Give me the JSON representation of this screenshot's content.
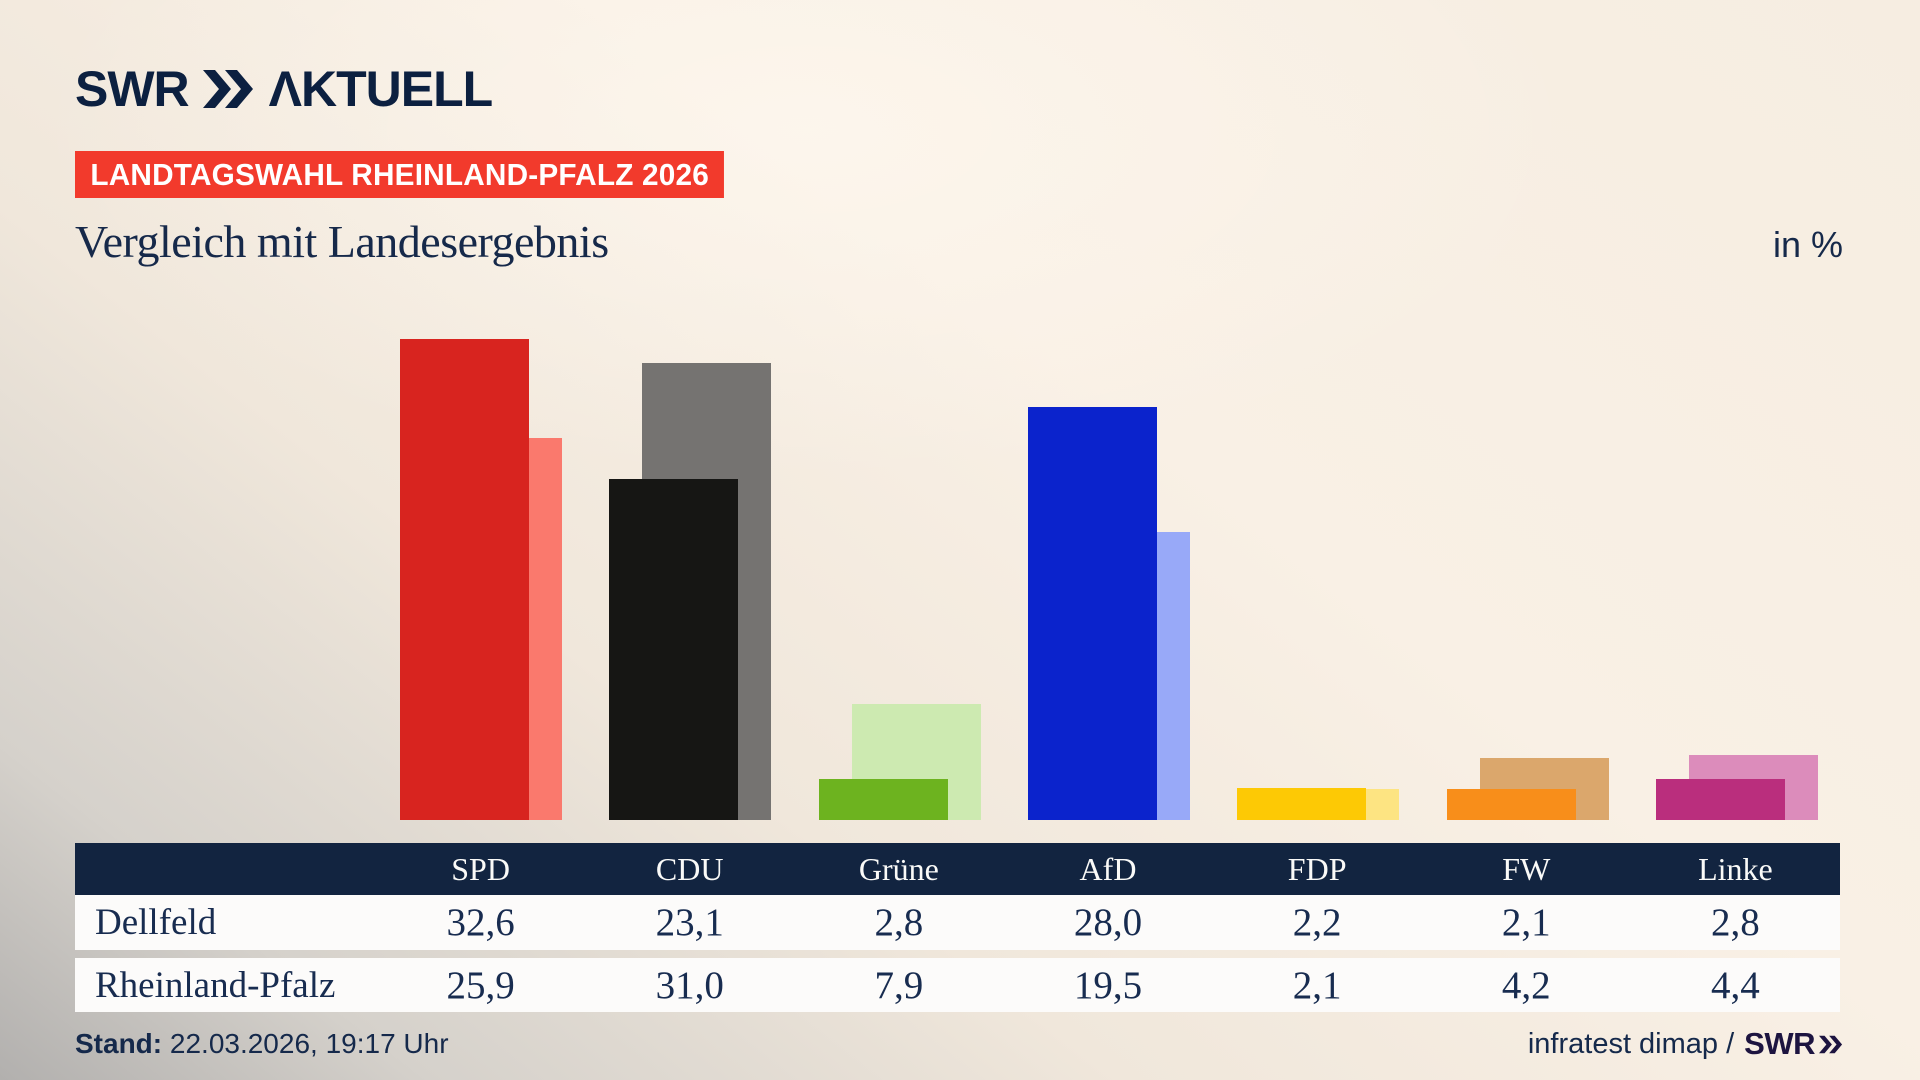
{
  "header": {
    "logo_brand": "SWR",
    "logo_suffix": "ΛKTUELL",
    "badge": "LANDTAGSWAHL RHEINLAND-PFALZ 2026",
    "title": "Vergleich mit Landesergebnis",
    "unit_label": "in %"
  },
  "chart_data": {
    "type": "bar",
    "title": "Vergleich mit Landesergebnis",
    "unit": "in %",
    "categories": [
      "SPD",
      "CDU",
      "Grüne",
      "AfD",
      "FDP",
      "FW",
      "Linke"
    ],
    "series": [
      {
        "name": "Dellfeld",
        "values": [
          32.6,
          23.1,
          2.8,
          28.0,
          2.2,
          2.1,
          2.8
        ],
        "colors": [
          "#d8241f",
          "#161614",
          "#6db31f",
          "#0b23cc",
          "#fdc905",
          "#f88e1a",
          "#ba2e7d"
        ]
      },
      {
        "name": "Rheinland-Pfalz",
        "values": [
          25.9,
          31.0,
          7.9,
          19.5,
          2.1,
          4.2,
          4.4
        ],
        "colors": [
          "#fa796d",
          "#757371",
          "#cdeab1",
          "#98a9f8",
          "#fde482",
          "#dba76c",
          "#dc8cbb"
        ]
      }
    ],
    "ylim": [
      0,
      35
    ],
    "grid": false,
    "legend": "table-below",
    "value_format": "decimal-comma"
  },
  "table": {
    "columns": [
      "SPD",
      "CDU",
      "Grüne",
      "AfD",
      "FDP",
      "FW",
      "Linke"
    ],
    "rows": [
      {
        "label": "Dellfeld",
        "values": [
          "32,6",
          "23,1",
          "2,8",
          "28,0",
          "2,2",
          "2,1",
          "2,8"
        ]
      },
      {
        "label": "Rheinland-Pfalz",
        "values": [
          "25,9",
          "31,0",
          "7,9",
          "19,5",
          "2,1",
          "4,2",
          "4,4"
        ]
      }
    ]
  },
  "footer": {
    "stand_label": "Stand:",
    "stand_value": " 22.03.2026, 19:17 Uhr",
    "source_text": "infratest dimap /",
    "source_brand": "SWR"
  },
  "colors": {
    "navy": "#122440",
    "text_navy": "#16294a",
    "badge_red": "#f23a2c",
    "row_bg": "#fcfbfa"
  }
}
